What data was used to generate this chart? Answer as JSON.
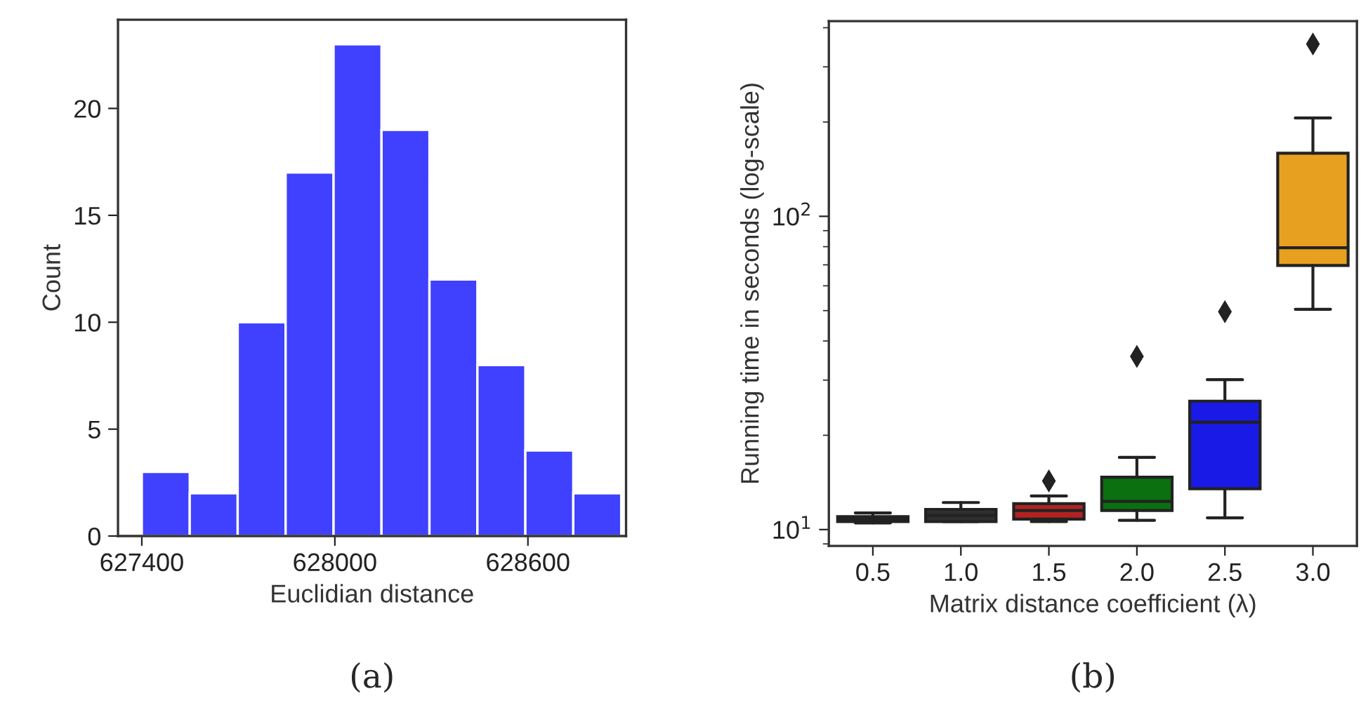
{
  "chart_data": [
    {
      "type": "histogram",
      "xlabel": "Euclidian distance",
      "ylabel": "Count",
      "bins": [
        627400,
        627549,
        627698,
        627847,
        627996,
        628145,
        628294,
        628443,
        628592,
        628741,
        628890
      ],
      "values": [
        3,
        2,
        10,
        17,
        23,
        19,
        12,
        8,
        4,
        2
      ],
      "color": "#4040ff",
      "xlim": [
        627326,
        628905
      ],
      "ylim": [
        0,
        24.15
      ],
      "xticks": [
        627400,
        628000,
        628600
      ],
      "yticks": [
        0,
        5,
        10,
        15,
        20
      ],
      "annotations": [
        "(a)"
      ]
    },
    {
      "type": "box",
      "xlabel": "Matrix distance coefficient (λ)",
      "ylabel": "Running time in seconds (log-scale)",
      "categories": [
        "0.5",
        "1.0",
        "1.5",
        "2.0",
        "2.5",
        "3.0"
      ],
      "boxes": [
        {
          "low": 10.5,
          "q1": 10.6,
          "median": 10.8,
          "q3": 11.0,
          "high": 11.3
        },
        {
          "low": 10.6,
          "q1": 10.6,
          "median": 11.1,
          "q3": 11.6,
          "high": 12.2
        },
        {
          "low": 10.6,
          "q1": 10.8,
          "median": 11.5,
          "q3": 12.1,
          "high": 12.8,
          "outliers": [
            14.3
          ]
        },
        {
          "low": 10.7,
          "q1": 11.5,
          "median": 12.3,
          "q3": 14.7,
          "high": 17.0,
          "outliers": [
            35.7
          ]
        },
        {
          "low": 10.9,
          "q1": 13.5,
          "median": 22.0,
          "q3": 25.7,
          "high": 30.1,
          "outliers": [
            49.6
          ]
        },
        {
          "low": 50.5,
          "q1": 69.7,
          "median": 79.4,
          "q3": 159,
          "high": 206,
          "outliers": [
            355
          ]
        }
      ],
      "colors": [
        "#303030",
        "#303030",
        "#b22222",
        "#0a7010",
        "#1a1ae6",
        "#e8a020"
      ],
      "log": true,
      "ylim": [
        8.87,
        420
      ],
      "yticks": [
        {
          "value": 10,
          "label": "10$^{1}$"
        },
        {
          "value": 100,
          "label": "10$^{2}$"
        }
      ],
      "marker": "diamond",
      "annotations": [
        "(b)"
      ]
    }
  ]
}
